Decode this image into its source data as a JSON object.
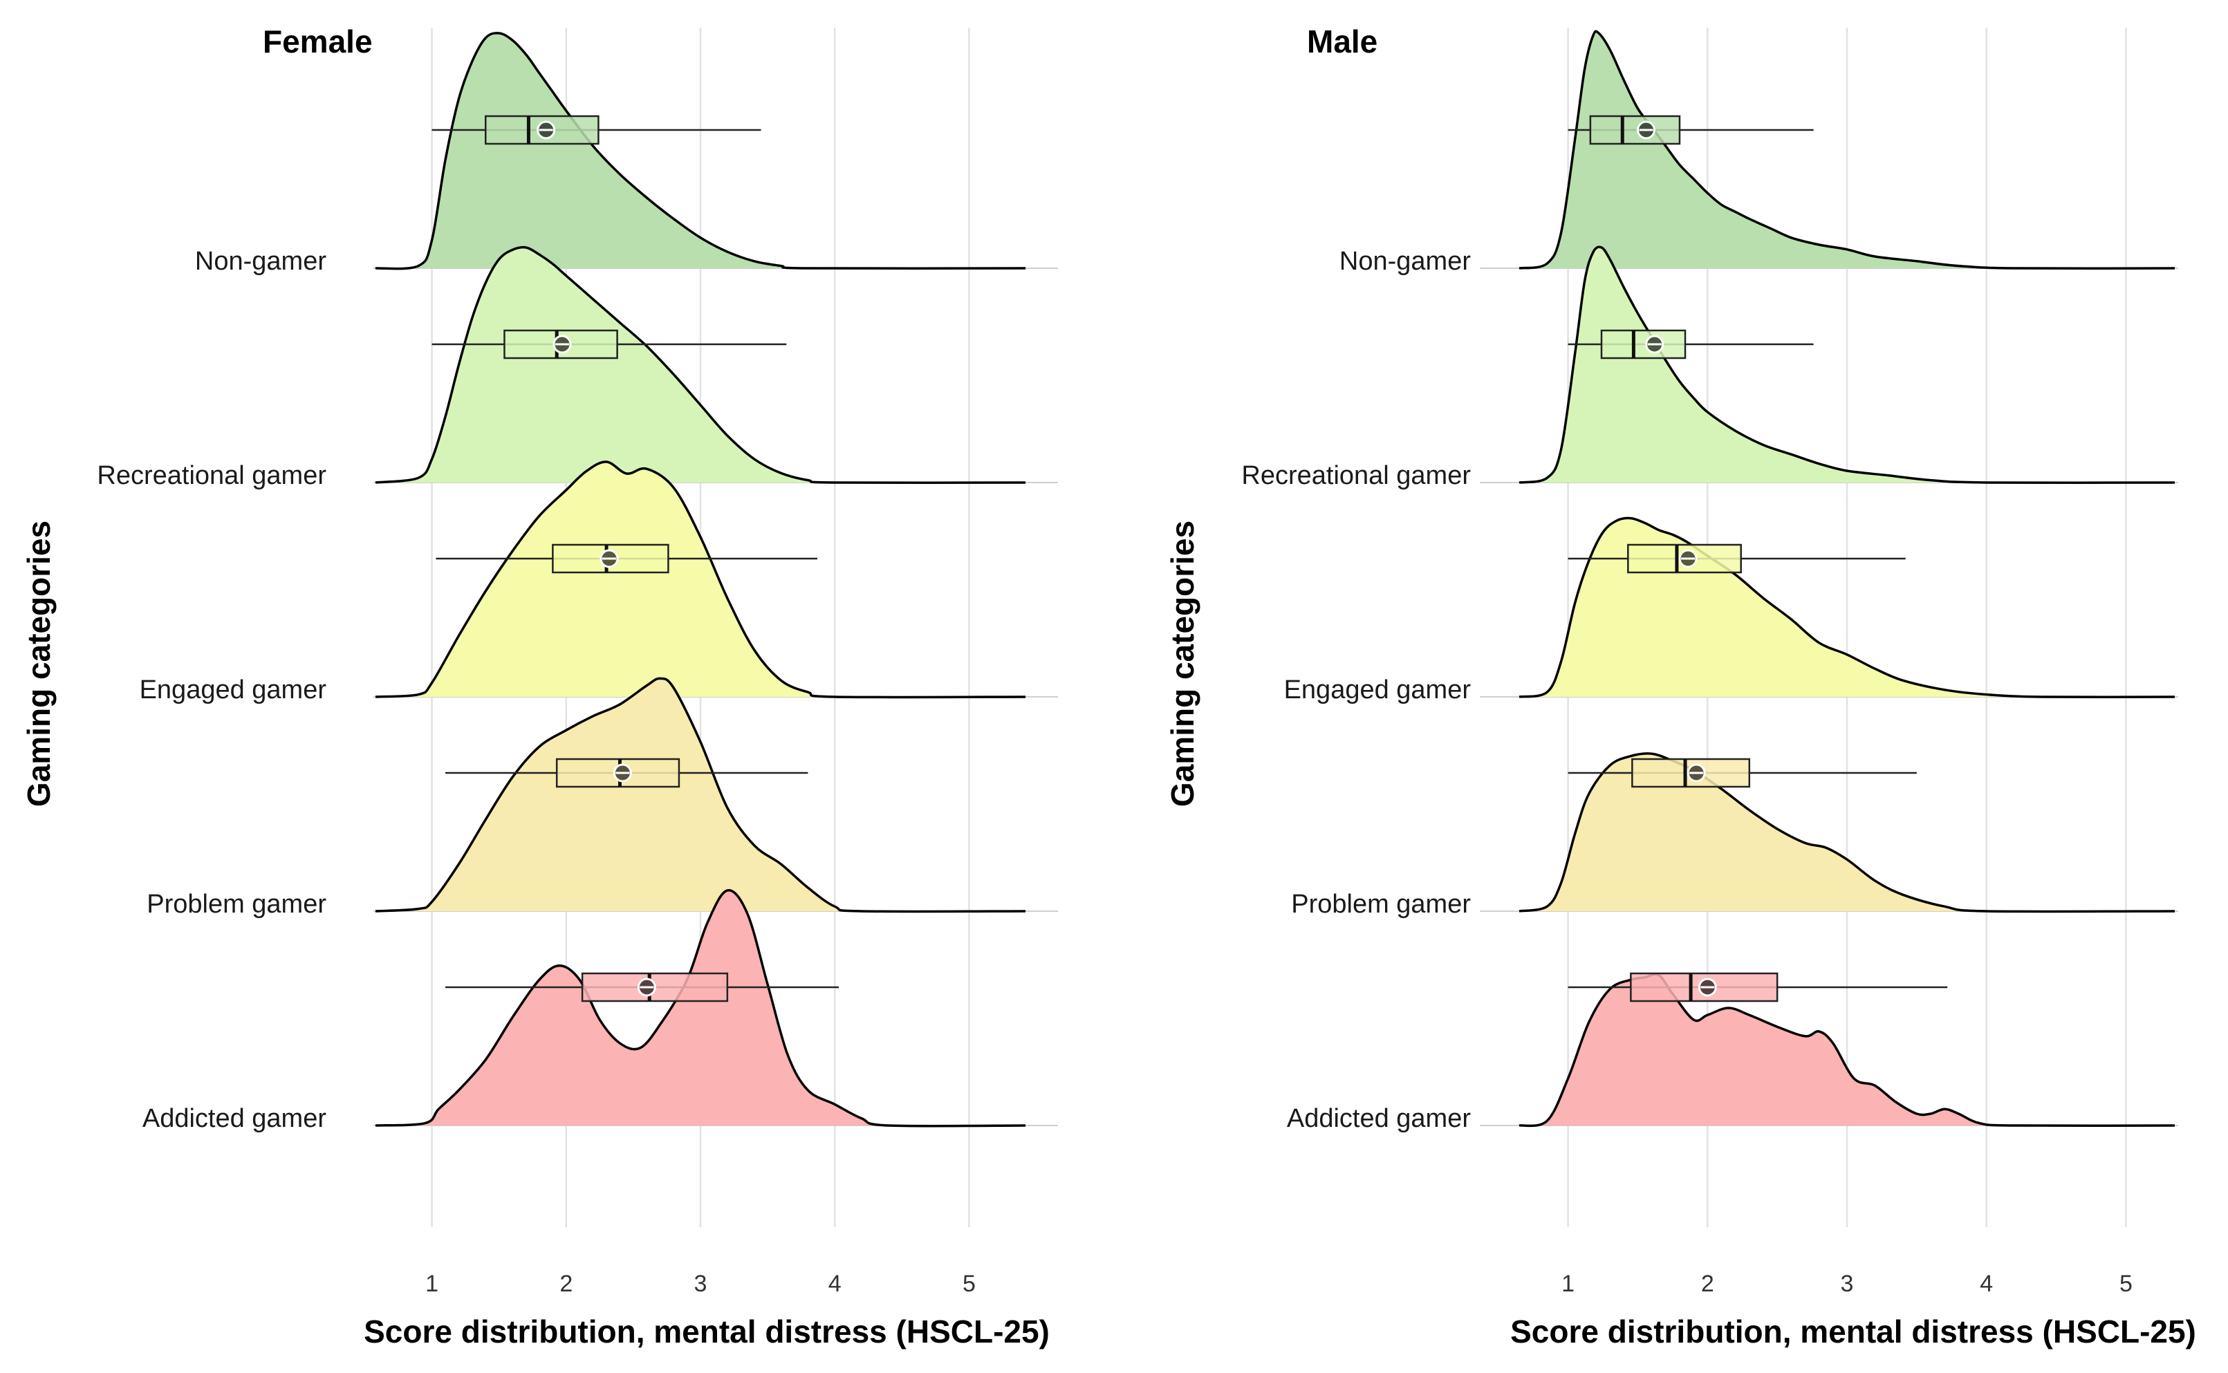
{
  "chart_data": [
    {
      "type": "ridgeline",
      "title": "Female",
      "xlabel": "Score distribution, mental distress (HSCL-25)",
      "ylabel": "Gaming categories",
      "xlim": [
        0.58,
        5.42
      ],
      "xticks": [
        1,
        2,
        3,
        4,
        5
      ],
      "categories": [
        "Non-gamer",
        "Recreational gamer",
        "Engaged gamer",
        "Problem gamer",
        "Addicted gamer"
      ],
      "series": [
        {
          "name": "Non-gamer",
          "color": "#b9dfae",
          "density": [
            [
              0.58,
              0
            ],
            [
              0.9,
              0.01
            ],
            [
              1.0,
              0.12
            ],
            [
              1.1,
              0.46
            ],
            [
              1.2,
              0.72
            ],
            [
              1.3,
              0.88
            ],
            [
              1.4,
              0.98
            ],
            [
              1.5,
              1.0
            ],
            [
              1.6,
              0.97
            ],
            [
              1.7,
              0.91
            ],
            [
              1.8,
              0.83
            ],
            [
              1.9,
              0.75
            ],
            [
              2.0,
              0.67
            ],
            [
              2.2,
              0.52
            ],
            [
              2.4,
              0.4
            ],
            [
              2.6,
              0.3
            ],
            [
              2.8,
              0.21
            ],
            [
              3.0,
              0.13
            ],
            [
              3.2,
              0.07
            ],
            [
              3.4,
              0.03
            ],
            [
              3.6,
              0.01
            ],
            [
              3.8,
              0.0
            ],
            [
              5.42,
              0
            ]
          ],
          "box": {
            "whisker_low": 1.0,
            "q1": 1.4,
            "median": 1.72,
            "q3": 2.24,
            "whisker_high": 3.45,
            "mean": 1.85
          }
        },
        {
          "name": "Recreational gamer",
          "color": "#d6f4b8",
          "density": [
            [
              0.58,
              0
            ],
            [
              0.9,
              0.02
            ],
            [
              1.0,
              0.1
            ],
            [
              1.1,
              0.28
            ],
            [
              1.2,
              0.5
            ],
            [
              1.3,
              0.7
            ],
            [
              1.4,
              0.85
            ],
            [
              1.5,
              0.95
            ],
            [
              1.6,
              0.99
            ],
            [
              1.7,
              1.0
            ],
            [
              1.8,
              0.97
            ],
            [
              1.9,
              0.93
            ],
            [
              2.0,
              0.88
            ],
            [
              2.2,
              0.78
            ],
            [
              2.4,
              0.68
            ],
            [
              2.6,
              0.58
            ],
            [
              2.8,
              0.46
            ],
            [
              3.0,
              0.33
            ],
            [
              3.2,
              0.2
            ],
            [
              3.4,
              0.1
            ],
            [
              3.6,
              0.04
            ],
            [
              3.8,
              0.01
            ],
            [
              4.0,
              0.0
            ],
            [
              5.42,
              0
            ]
          ],
          "box": {
            "whisker_low": 1.0,
            "q1": 1.54,
            "median": 1.93,
            "q3": 2.38,
            "whisker_high": 3.64,
            "mean": 1.97
          }
        },
        {
          "name": "Engaged gamer",
          "color": "#f5fba8",
          "density": [
            [
              0.58,
              0
            ],
            [
              0.9,
              0.01
            ],
            [
              1.0,
              0.06
            ],
            [
              1.2,
              0.26
            ],
            [
              1.4,
              0.45
            ],
            [
              1.6,
              0.62
            ],
            [
              1.8,
              0.77
            ],
            [
              2.0,
              0.88
            ],
            [
              2.15,
              0.96
            ],
            [
              2.3,
              1.0
            ],
            [
              2.45,
              0.95
            ],
            [
              2.6,
              0.97
            ],
            [
              2.8,
              0.89
            ],
            [
              3.0,
              0.68
            ],
            [
              3.2,
              0.42
            ],
            [
              3.4,
              0.2
            ],
            [
              3.6,
              0.07
            ],
            [
              3.8,
              0.02
            ],
            [
              4.0,
              0.0
            ],
            [
              5.42,
              0
            ]
          ],
          "box": {
            "whisker_low": 1.03,
            "q1": 1.9,
            "median": 2.3,
            "q3": 2.76,
            "whisker_high": 3.87,
            "mean": 2.32
          }
        },
        {
          "name": "Problem gamer",
          "color": "#f8ebb0",
          "density": [
            [
              0.58,
              0
            ],
            [
              0.9,
              0.01
            ],
            [
              1.0,
              0.04
            ],
            [
              1.2,
              0.2
            ],
            [
              1.4,
              0.39
            ],
            [
              1.6,
              0.57
            ],
            [
              1.8,
              0.7
            ],
            [
              2.0,
              0.77
            ],
            [
              2.2,
              0.83
            ],
            [
              2.4,
              0.88
            ],
            [
              2.6,
              0.96
            ],
            [
              2.7,
              0.99
            ],
            [
              2.8,
              0.95
            ],
            [
              3.0,
              0.72
            ],
            [
              3.2,
              0.44
            ],
            [
              3.4,
              0.28
            ],
            [
              3.6,
              0.2
            ],
            [
              3.8,
              0.1
            ],
            [
              4.0,
              0.02
            ],
            [
              4.2,
              0.0
            ],
            [
              5.42,
              0
            ]
          ],
          "box": {
            "whisker_low": 1.1,
            "q1": 1.93,
            "median": 2.4,
            "q3": 2.84,
            "whisker_high": 3.8,
            "mean": 2.42
          }
        },
        {
          "name": "Addicted gamer",
          "color": "#fbb3b3",
          "density": [
            [
              0.58,
              0
            ],
            [
              0.95,
              0.01
            ],
            [
              1.05,
              0.07
            ],
            [
              1.2,
              0.15
            ],
            [
              1.4,
              0.28
            ],
            [
              1.6,
              0.46
            ],
            [
              1.8,
              0.62
            ],
            [
              1.95,
              0.68
            ],
            [
              2.1,
              0.62
            ],
            [
              2.25,
              0.45
            ],
            [
              2.4,
              0.35
            ],
            [
              2.55,
              0.33
            ],
            [
              2.7,
              0.43
            ],
            [
              2.9,
              0.62
            ],
            [
              3.05,
              0.86
            ],
            [
              3.2,
              1.0
            ],
            [
              3.35,
              0.9
            ],
            [
              3.5,
              0.6
            ],
            [
              3.65,
              0.3
            ],
            [
              3.8,
              0.15
            ],
            [
              4.0,
              0.09
            ],
            [
              4.2,
              0.03
            ],
            [
              4.4,
              0.0
            ],
            [
              5.42,
              0
            ]
          ],
          "box": {
            "whisker_low": 1.1,
            "q1": 2.12,
            "median": 2.62,
            "q3": 3.2,
            "whisker_high": 4.03,
            "mean": 2.6
          }
        }
      ]
    },
    {
      "type": "ridgeline",
      "title": "Male",
      "xlabel": "Score distribution, mental distress (HSCL-25)",
      "ylabel": "Gaming categories",
      "xlim": [
        0.65,
        5.35
      ],
      "xticks": [
        1,
        2,
        3,
        4,
        5
      ],
      "categories": [
        "Non-gamer",
        "Recreational gamer",
        "Engaged gamer",
        "Problem gamer",
        "Addicted gamer"
      ],
      "series": [
        {
          "name": "Non-gamer",
          "color": "#b9dfae",
          "density": [
            [
              0.65,
              0
            ],
            [
              0.85,
              0.02
            ],
            [
              0.95,
              0.15
            ],
            [
              1.05,
              0.55
            ],
            [
              1.12,
              0.85
            ],
            [
              1.18,
              0.99
            ],
            [
              1.22,
              1.0
            ],
            [
              1.3,
              0.93
            ],
            [
              1.4,
              0.8
            ],
            [
              1.5,
              0.68
            ],
            [
              1.6,
              0.6
            ],
            [
              1.7,
              0.52
            ],
            [
              1.8,
              0.44
            ],
            [
              1.9,
              0.38
            ],
            [
              2.0,
              0.32
            ],
            [
              2.1,
              0.27
            ],
            [
              2.2,
              0.24
            ],
            [
              2.3,
              0.21
            ],
            [
              2.45,
              0.17
            ],
            [
              2.6,
              0.13
            ],
            [
              2.8,
              0.1
            ],
            [
              3.0,
              0.08
            ],
            [
              3.2,
              0.05
            ],
            [
              3.5,
              0.03
            ],
            [
              3.8,
              0.01
            ],
            [
              4.2,
              0.0
            ],
            [
              5.35,
              0
            ]
          ],
          "box": {
            "whisker_low": 1.0,
            "q1": 1.16,
            "median": 1.39,
            "q3": 1.8,
            "whisker_high": 2.76,
            "mean": 1.56
          }
        },
        {
          "name": "Recreational gamer",
          "color": "#d6f4b8",
          "density": [
            [
              0.65,
              0
            ],
            [
              0.85,
              0.02
            ],
            [
              0.95,
              0.14
            ],
            [
              1.05,
              0.55
            ],
            [
              1.12,
              0.86
            ],
            [
              1.18,
              0.98
            ],
            [
              1.24,
              1.0
            ],
            [
              1.3,
              0.95
            ],
            [
              1.4,
              0.83
            ],
            [
              1.5,
              0.72
            ],
            [
              1.6,
              0.62
            ],
            [
              1.7,
              0.52
            ],
            [
              1.8,
              0.43
            ],
            [
              1.9,
              0.36
            ],
            [
              2.0,
              0.3
            ],
            [
              2.2,
              0.22
            ],
            [
              2.4,
              0.16
            ],
            [
              2.6,
              0.12
            ],
            [
              2.8,
              0.08
            ],
            [
              3.0,
              0.05
            ],
            [
              3.3,
              0.03
            ],
            [
              3.6,
              0.01
            ],
            [
              4.0,
              0.0
            ],
            [
              5.35,
              0
            ]
          ],
          "box": {
            "whisker_low": 1.0,
            "q1": 1.24,
            "median": 1.47,
            "q3": 1.84,
            "whisker_high": 2.76,
            "mean": 1.62
          }
        },
        {
          "name": "Engaged gamer",
          "color": "#f5fba8",
          "density": [
            [
              0.65,
              0
            ],
            [
              0.85,
              0.02
            ],
            [
              0.95,
              0.15
            ],
            [
              1.05,
              0.4
            ],
            [
              1.15,
              0.58
            ],
            [
              1.25,
              0.7
            ],
            [
              1.35,
              0.75
            ],
            [
              1.45,
              0.76
            ],
            [
              1.55,
              0.74
            ],
            [
              1.65,
              0.71
            ],
            [
              1.75,
              0.69
            ],
            [
              1.85,
              0.66
            ],
            [
              2.0,
              0.6
            ],
            [
              2.2,
              0.52
            ],
            [
              2.4,
              0.42
            ],
            [
              2.6,
              0.33
            ],
            [
              2.8,
              0.23
            ],
            [
              3.0,
              0.18
            ],
            [
              3.2,
              0.12
            ],
            [
              3.4,
              0.07
            ],
            [
              3.7,
              0.03
            ],
            [
              4.0,
              0.01
            ],
            [
              4.4,
              0.0
            ],
            [
              5.35,
              0
            ]
          ],
          "box": {
            "whisker_low": 1.0,
            "q1": 1.43,
            "median": 1.78,
            "q3": 2.24,
            "whisker_high": 3.42,
            "mean": 1.86
          }
        },
        {
          "name": "Problem gamer",
          "color": "#f8ebb0",
          "density": [
            [
              0.65,
              0
            ],
            [
              0.85,
              0.02
            ],
            [
              0.95,
              0.12
            ],
            [
              1.05,
              0.33
            ],
            [
              1.15,
              0.5
            ],
            [
              1.3,
              0.62
            ],
            [
              1.45,
              0.66
            ],
            [
              1.6,
              0.67
            ],
            [
              1.75,
              0.64
            ],
            [
              1.9,
              0.6
            ],
            [
              2.1,
              0.52
            ],
            [
              2.3,
              0.43
            ],
            [
              2.5,
              0.35
            ],
            [
              2.7,
              0.29
            ],
            [
              2.85,
              0.27
            ],
            [
              3.0,
              0.22
            ],
            [
              3.2,
              0.13
            ],
            [
              3.4,
              0.07
            ],
            [
              3.7,
              0.02
            ],
            [
              4.0,
              0.0
            ],
            [
              5.35,
              0
            ]
          ],
          "box": {
            "whisker_low": 1.0,
            "q1": 1.46,
            "median": 1.84,
            "q3": 2.3,
            "whisker_high": 3.5,
            "mean": 1.92
          }
        },
        {
          "name": "Addicted gamer",
          "color": "#fbb3b3",
          "density": [
            [
              0.65,
              0
            ],
            [
              0.85,
              0.02
            ],
            [
              1.0,
              0.2
            ],
            [
              1.15,
              0.44
            ],
            [
              1.3,
              0.58
            ],
            [
              1.45,
              0.62
            ],
            [
              1.55,
              0.63
            ],
            [
              1.65,
              0.64
            ],
            [
              1.75,
              0.56
            ],
            [
              1.9,
              0.45
            ],
            [
              2.0,
              0.47
            ],
            [
              2.15,
              0.5
            ],
            [
              2.3,
              0.47
            ],
            [
              2.5,
              0.42
            ],
            [
              2.7,
              0.38
            ],
            [
              2.8,
              0.4
            ],
            [
              2.9,
              0.35
            ],
            [
              3.05,
              0.2
            ],
            [
              3.2,
              0.17
            ],
            [
              3.35,
              0.1
            ],
            [
              3.5,
              0.05
            ],
            [
              3.6,
              0.05
            ],
            [
              3.7,
              0.07
            ],
            [
              3.8,
              0.05
            ],
            [
              3.95,
              0.01
            ],
            [
              4.2,
              0.0
            ],
            [
              5.35,
              0
            ]
          ],
          "box": {
            "whisker_low": 1.0,
            "q1": 1.45,
            "median": 1.88,
            "q3": 2.5,
            "whisker_high": 3.72,
            "mean": 2.0
          }
        }
      ]
    }
  ]
}
